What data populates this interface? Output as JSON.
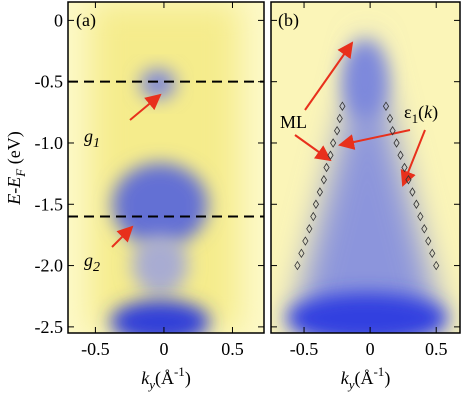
{
  "chart_data": [
    {
      "type": "image",
      "panel_label": "(a)",
      "xlabel": [
        "k",
        "y",
        "(Å",
        "-1",
        ")"
      ],
      "ylabel": [
        "E-E",
        "F",
        " (eV)"
      ],
      "xlim": [
        -0.7,
        0.73
      ],
      "ylim": [
        -2.55,
        0.15
      ],
      "xticks": [
        -0.5,
        0,
        0.5
      ],
      "yticks": [
        0,
        -0.5,
        {
          "value": -1,
          "label": "-1.0"
        },
        -1.5,
        {
          "value": -2,
          "label": "-2.0"
        },
        -2.5
      ],
      "hlines": [
        -0.5,
        -1.6
      ],
      "annotations": [
        [
          "g",
          "1"
        ],
        [
          "g",
          "2"
        ]
      ]
    },
    {
      "type": "image",
      "panel_label": "(b)",
      "xlabel": [
        "k",
        "y",
        "(Å",
        "-1",
        ")"
      ],
      "xlim": [
        -0.75,
        0.68
      ],
      "ylim": [
        -2.55,
        0.15
      ],
      "xticks": [
        -0.5,
        0,
        0.5
      ],
      "yticks": [
        0,
        -0.5,
        -1,
        -1.5,
        -2,
        -2.5
      ],
      "annotations": [
        [
          "ML"
        ],
        [
          "ε",
          "1",
          "(",
          "k",
          ")"
        ]
      ],
      "series": [
        {
          "x": [
            -0.21,
            -0.23,
            -0.25,
            -0.28,
            -0.3,
            -0.33,
            -0.35,
            -0.38,
            -0.41,
            -0.43,
            -0.46,
            -0.49,
            -0.52,
            -0.55
          ],
          "values": [
            -0.7,
            -0.8,
            -0.9,
            -1.0,
            -1.1,
            -1.2,
            -1.3,
            -1.4,
            -1.5,
            -1.6,
            -1.7,
            -1.8,
            -1.9,
            -2.0
          ]
        },
        {
          "x": [
            0.12,
            0.15,
            0.17,
            0.2,
            0.23,
            0.26,
            0.29,
            0.32,
            0.35,
            0.38,
            0.41,
            0.44,
            0.47,
            0.5
          ],
          "values": [
            -0.7,
            -0.8,
            -0.9,
            -1.0,
            -1.1,
            -1.2,
            -1.3,
            -1.4,
            -1.5,
            -1.6,
            -1.7,
            -1.8,
            -1.9,
            -2.0
          ]
        }
      ]
    }
  ]
}
